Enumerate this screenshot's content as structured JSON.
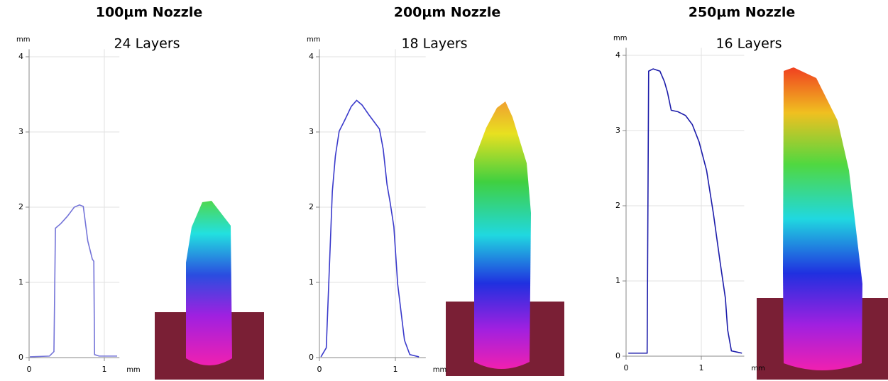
{
  "chart_data": [
    {
      "type": "line",
      "title": "100µm Nozzle",
      "subtitle": "24 Layers",
      "x_label": "mm",
      "y_label": "mm",
      "xlim": [
        0,
        1.2
      ],
      "ylim": [
        0,
        4.1
      ],
      "xticks": [
        0,
        1
      ],
      "yticks": [
        0,
        1,
        2,
        3,
        4
      ],
      "grid": true,
      "series": [
        {
          "color": "#7474d8",
          "x": [
            0.01,
            0.27,
            0.33,
            0.35,
            0.42,
            0.51,
            0.6,
            0.67,
            0.72,
            0.78,
            0.84,
            0.86,
            0.87,
            0.93,
            1.17
          ],
          "values": [
            0.01,
            0.02,
            0.08,
            1.72,
            1.78,
            1.88,
            2.0,
            2.03,
            2.01,
            1.55,
            1.31,
            1.28,
            0.04,
            0.02,
            0.02
          ]
        }
      ]
    },
    {
      "type": "line",
      "title": "200µm Nozzle",
      "subtitle": "18 Layers",
      "x_label": "mm",
      "y_label": "mm",
      "xlim": [
        0,
        1.4
      ],
      "ylim": [
        0,
        4.1
      ],
      "xticks": [
        0,
        1
      ],
      "yticks": [
        0,
        1,
        2,
        3,
        4
      ],
      "grid": true,
      "series": [
        {
          "color": "#3a3acb",
          "x": [
            0.02,
            0.09,
            0.17,
            0.21,
            0.26,
            0.33,
            0.42,
            0.49,
            0.56,
            0.65,
            0.79,
            0.84,
            0.89,
            0.93,
            0.98,
            1.03,
            1.12,
            1.19,
            1.31
          ],
          "values": [
            0.01,
            0.13,
            2.21,
            2.68,
            3.01,
            3.15,
            3.34,
            3.42,
            3.36,
            3.23,
            3.04,
            2.77,
            2.3,
            2.07,
            1.74,
            0.98,
            0.23,
            0.04,
            0.01
          ]
        }
      ]
    },
    {
      "type": "line",
      "title": "250µm Nozzle",
      "subtitle": "16 Layers",
      "x_label": "mm",
      "y_label": "mm",
      "xlim": [
        0,
        1.57
      ],
      "ylim": [
        0,
        4.1
      ],
      "xticks": [
        0,
        1
      ],
      "yticks": [
        0,
        1,
        2,
        3,
        4
      ],
      "grid": true,
      "series": [
        {
          "color": "#1c1caa",
          "x": [
            0.03,
            0.28,
            0.3,
            0.36,
            0.45,
            0.51,
            0.55,
            0.6,
            0.69,
            0.79,
            0.88,
            0.97,
            1.07,
            1.16,
            1.25,
            1.32,
            1.35,
            1.4,
            1.54
          ],
          "values": [
            0.04,
            0.04,
            3.79,
            3.82,
            3.79,
            3.65,
            3.51,
            3.27,
            3.25,
            3.2,
            3.08,
            2.85,
            2.47,
            1.9,
            1.25,
            0.77,
            0.35,
            0.07,
            0.04
          ]
        }
      ]
    }
  ]
}
